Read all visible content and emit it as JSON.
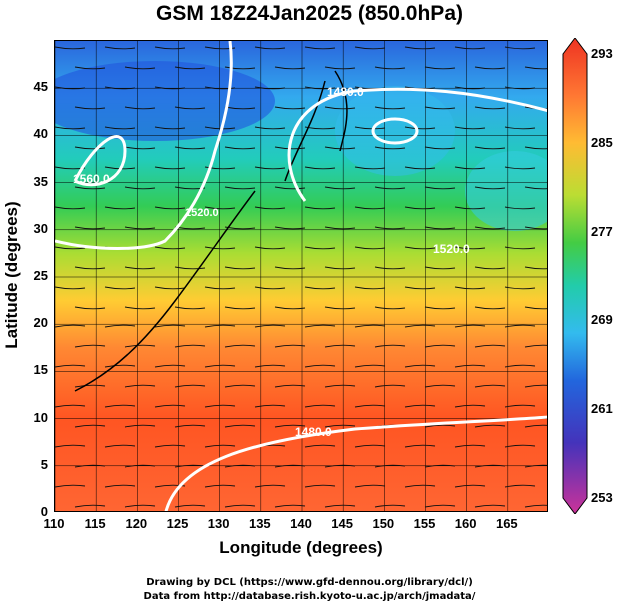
{
  "title": "GSM 18Z24Jan2025 (850.0hPa)",
  "axes": {
    "xlabel": "Longitude (degrees)",
    "ylabel": "Latitude  (degrees)",
    "xticks": [
      "110",
      "115",
      "120",
      "125",
      "130",
      "135",
      "140",
      "145",
      "150",
      "155",
      "160",
      "165"
    ],
    "yticks": [
      "0",
      "5",
      "10",
      "15",
      "20",
      "25",
      "30",
      "35",
      "40",
      "45"
    ],
    "xlim": [
      110,
      170
    ],
    "ylim": [
      0,
      50
    ]
  },
  "colorbar": {
    "labels": [
      "293",
      "285",
      "277",
      "269",
      "261",
      "253"
    ],
    "range": [
      253,
      293
    ],
    "colors": [
      "#cc3399",
      "#4433bb",
      "#2266dd",
      "#33bbee",
      "#22ccaa",
      "#44cc44",
      "#bbdd33",
      "#ffbb33",
      "#ff7733",
      "#ee3322"
    ]
  },
  "contours": {
    "labels": [
      "1480.0",
      "1560.0",
      "1520.0",
      "1520.0",
      "1480.0"
    ],
    "color": "#ffffff"
  },
  "credits": {
    "line1": "Drawing by DCL (https://www.gfd-dennou.org/library/dcl/)",
    "line2": "Data from http://database.rish.kyoto-u.ac.jp/arch/jmadata/"
  }
}
